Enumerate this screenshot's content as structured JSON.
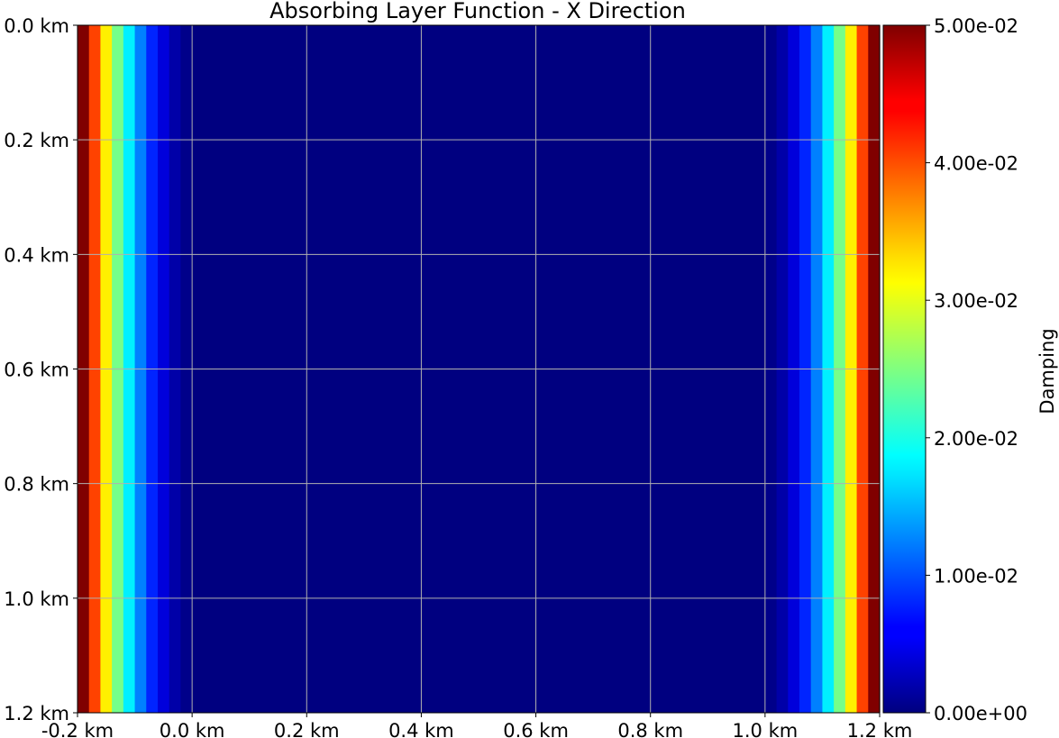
{
  "chart_data": {
    "type": "heatmap",
    "title": "Absorbing Layer Function - X Direction",
    "xlabel": "",
    "ylabel": "",
    "xlim": [
      -0.2,
      1.2
    ],
    "ylim": [
      1.2,
      0.0
    ],
    "x_tick_labels": [
      "-0.2 km",
      "0.0 km",
      "0.2 km",
      "0.4 km",
      "0.6 km",
      "0.8 km",
      "1.0 km",
      "1.2 km"
    ],
    "x_tick_values": [
      -0.2,
      0.0,
      0.2,
      0.4,
      0.6,
      0.8,
      1.0,
      1.2
    ],
    "y_tick_labels": [
      "0.0 km",
      "0.2 km",
      "0.4 km",
      "0.6 km",
      "0.8 km",
      "1.0 km",
      "1.2 km"
    ],
    "y_tick_values": [
      0.0,
      0.2,
      0.4,
      0.6,
      0.8,
      1.0,
      1.2
    ],
    "grid": true,
    "colormap": "jet",
    "colorbar": {
      "label": "Damping",
      "range": [
        0.0,
        0.05
      ],
      "tick_labels": [
        "0.00e+00",
        "1.00e-02",
        "2.00e-02",
        "3.00e-02",
        "4.00e-02",
        "5.00e-02"
      ],
      "tick_values": [
        0.0,
        0.01,
        0.02,
        0.03,
        0.04,
        0.05
      ]
    },
    "x_cell_edges": [
      -0.2,
      -0.18,
      -0.16,
      -0.14,
      -0.12,
      -0.1,
      -0.08,
      -0.06,
      -0.04,
      -0.02,
      0.0,
      1.0,
      1.02,
      1.04,
      1.06,
      1.08,
      1.1,
      1.12,
      1.14,
      1.16,
      1.18,
      1.2
    ],
    "x_profile_values": [
      0.05,
      0.0405,
      0.032,
      0.0245,
      0.018,
      0.0125,
      0.008,
      0.0045,
      0.002,
      0.0005,
      0.0,
      0.0005,
      0.002,
      0.0045,
      0.008,
      0.0125,
      0.018,
      0.0245,
      0.032,
      0.0405,
      0.05
    ],
    "note_values_constant_along_y": true
  }
}
